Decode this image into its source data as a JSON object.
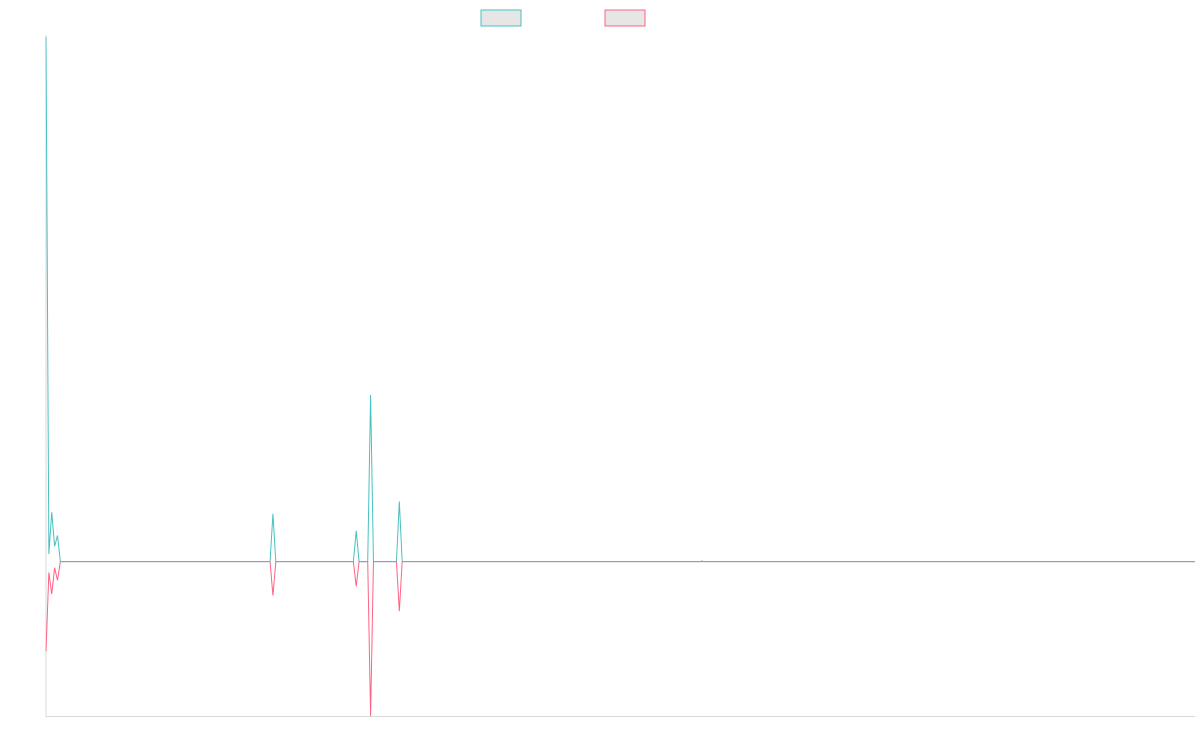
{
  "chart_data": {
    "type": "line",
    "title": "",
    "xlabel": "",
    "ylabel": "",
    "grid": false,
    "legend": "top-center",
    "xlim": [
      0,
      200
    ],
    "ylim": [
      -10,
      34
    ],
    "series": [
      {
        "name": "",
        "color": "#4bc0c0",
        "fill": "#e6e6e6",
        "points": [
          [
            0,
            34
          ],
          [
            0.5,
            0.5
          ],
          [
            1,
            3.2
          ],
          [
            1.5,
            1
          ],
          [
            2,
            1.7
          ],
          [
            2.5,
            0
          ],
          [
            39,
            0
          ],
          [
            39.5,
            3.1
          ],
          [
            40,
            0
          ],
          [
            53.5,
            0
          ],
          [
            54,
            2
          ],
          [
            54.5,
            0
          ],
          [
            56,
            0
          ],
          [
            56.5,
            10.8
          ],
          [
            57,
            0
          ],
          [
            61,
            0
          ],
          [
            61.5,
            3.9
          ],
          [
            62,
            0
          ],
          [
            114,
            0
          ],
          [
            114.2,
            0.05
          ],
          [
            114.5,
            0
          ],
          [
            200,
            0
          ]
        ]
      },
      {
        "name": "",
        "color": "#ff6384",
        "fill": "#e6e6e6",
        "points": [
          [
            0,
            -5.8
          ],
          [
            0.5,
            -0.7
          ],
          [
            1,
            -2.1
          ],
          [
            1.5,
            -0.4
          ],
          [
            2,
            -1.2
          ],
          [
            2.5,
            0
          ],
          [
            39,
            0
          ],
          [
            39.5,
            -2.2
          ],
          [
            40,
            0
          ],
          [
            53.5,
            0
          ],
          [
            54,
            -1.6
          ],
          [
            54.5,
            0
          ],
          [
            56,
            0
          ],
          [
            56.5,
            -10
          ],
          [
            57,
            0
          ],
          [
            61,
            0
          ],
          [
            61.5,
            -3.2
          ],
          [
            62,
            0
          ],
          [
            200,
            0
          ]
        ]
      }
    ]
  }
}
